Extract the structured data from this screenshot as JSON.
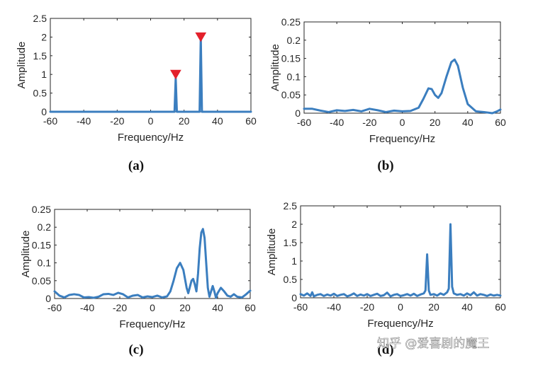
{
  "chart_data": [
    {
      "id": "a",
      "type": "line",
      "caption": "(a)",
      "xlabel": "Frequency/Hz",
      "ylabel": "Amplitude",
      "xlim": [
        -60,
        60
      ],
      "ylim": [
        0,
        2.5
      ],
      "xticks": [
        "-60",
        "-40",
        "-20",
        "0",
        "20",
        "40",
        "60"
      ],
      "yticks": [
        "0",
        "0.5",
        "1",
        "1.5",
        "2",
        "2.5"
      ],
      "series": [
        {
          "color": "#3b7ebf",
          "points": [
            [
              -60,
              0
            ],
            [
              14.3,
              0
            ],
            [
              15,
              0.9
            ],
            [
              15.7,
              0
            ],
            [
              29.3,
              0
            ],
            [
              30,
              2
            ],
            [
              30.7,
              0
            ],
            [
              60,
              0
            ]
          ]
        }
      ],
      "markers": [
        {
          "x": 15,
          "y": 1,
          "shape": "triangle-down",
          "color": "#e3202b"
        },
        {
          "x": 30,
          "y": 2,
          "shape": "triangle-down",
          "color": "#e3202b"
        }
      ]
    },
    {
      "id": "b",
      "type": "line",
      "caption": "(b)",
      "xlabel": "Frequency/Hz",
      "ylabel": "Amplitude",
      "xlim": [
        -60,
        60
      ],
      "ylim": [
        0,
        0.25
      ],
      "xticks": [
        "-60",
        "-40",
        "-20",
        "0",
        "20",
        "40",
        "60"
      ],
      "yticks": [
        "0",
        "0.05",
        "0.1",
        "0.15",
        "0.2",
        "0.25"
      ],
      "series": [
        {
          "color": "#3b7ebf",
          "points": [
            [
              -60,
              0.012
            ],
            [
              -55,
              0.012
            ],
            [
              -50,
              0.007
            ],
            [
              -45,
              0.003
            ],
            [
              -40,
              0.008
            ],
            [
              -35,
              0.006
            ],
            [
              -30,
              0.009
            ],
            [
              -25,
              0.005
            ],
            [
              -20,
              0.012
            ],
            [
              -15,
              0.008
            ],
            [
              -10,
              0.003
            ],
            [
              -5,
              0.007
            ],
            [
              0,
              0.005
            ],
            [
              5,
              0.006
            ],
            [
              10,
              0.015
            ],
            [
              13,
              0.04
            ],
            [
              16,
              0.068
            ],
            [
              18,
              0.066
            ],
            [
              20,
              0.05
            ],
            [
              22,
              0.042
            ],
            [
              24,
              0.055
            ],
            [
              27,
              0.1
            ],
            [
              30,
              0.14
            ],
            [
              32,
              0.147
            ],
            [
              34,
              0.13
            ],
            [
              37,
              0.07
            ],
            [
              40,
              0.025
            ],
            [
              45,
              0.005
            ],
            [
              50,
              0.003
            ],
            [
              55,
              0.0
            ],
            [
              58,
              0.005
            ],
            [
              60,
              0.01
            ]
          ]
        }
      ]
    },
    {
      "id": "c",
      "type": "line",
      "caption": "(c)",
      "xlabel": "Frequency/Hz",
      "ylabel": "Amplitude",
      "xlim": [
        -60,
        60
      ],
      "ylim": [
        0,
        0.25
      ],
      "xticks": [
        "-60",
        "-40",
        "-20",
        "0",
        "20",
        "40",
        "60"
      ],
      "yticks": [
        "0",
        "0.05",
        "0.1",
        "0.15",
        "0.2",
        "0.25"
      ],
      "series": [
        {
          "color": "#3b7ebf",
          "points": [
            [
              -60,
              0.02
            ],
            [
              -57,
              0.008
            ],
            [
              -54,
              0.003
            ],
            [
              -51,
              0.01
            ],
            [
              -48,
              0.012
            ],
            [
              -45,
              0.01
            ],
            [
              -42,
              0.003
            ],
            [
              -39,
              0.004
            ],
            [
              -36,
              0.002
            ],
            [
              -33,
              0.005
            ],
            [
              -30,
              0.012
            ],
            [
              -27,
              0.013
            ],
            [
              -24,
              0.01
            ],
            [
              -21,
              0.016
            ],
            [
              -18,
              0.012
            ],
            [
              -15,
              0.003
            ],
            [
              -12,
              0.008
            ],
            [
              -9,
              0.01
            ],
            [
              -6,
              0.003
            ],
            [
              -3,
              0.006
            ],
            [
              0,
              0.004
            ],
            [
              3,
              0.008
            ],
            [
              6,
              0.003
            ],
            [
              9,
              0.006
            ],
            [
              11,
              0.02
            ],
            [
              13,
              0.05
            ],
            [
              15,
              0.085
            ],
            [
              17,
              0.1
            ],
            [
              19,
              0.08
            ],
            [
              21,
              0.03
            ],
            [
              22,
              0.015
            ],
            [
              24,
              0.05
            ],
            [
              25,
              0.055
            ],
            [
              26,
              0.04
            ],
            [
              27,
              0.02
            ],
            [
              28,
              0.07
            ],
            [
              29,
              0.14
            ],
            [
              30,
              0.185
            ],
            [
              31,
              0.195
            ],
            [
              32,
              0.17
            ],
            [
              33,
              0.1
            ],
            [
              34,
              0.03
            ],
            [
              35,
              0.005
            ],
            [
              36,
              0.02
            ],
            [
              37,
              0.035
            ],
            [
              38,
              0.02
            ],
            [
              39,
              0.002
            ],
            [
              40,
              0.015
            ],
            [
              42,
              0.03
            ],
            [
              44,
              0.02
            ],
            [
              46,
              0.008
            ],
            [
              48,
              0.005
            ],
            [
              50,
              0.012
            ],
            [
              52,
              0.005
            ],
            [
              55,
              0.003
            ],
            [
              57,
              0.01
            ],
            [
              60,
              0.022
            ]
          ]
        }
      ]
    },
    {
      "id": "d",
      "type": "line",
      "caption": "(d)",
      "xlabel": "Frequency/Hz",
      "ylabel": "Amplitude",
      "xlim": [
        -60,
        60
      ],
      "ylim": [
        0,
        2.5
      ],
      "xticks": [
        "-60",
        "-40",
        "-20",
        "0",
        "20",
        "40",
        "60"
      ],
      "yticks": [
        "0",
        "0.5",
        "1",
        "1.5",
        "2",
        "2.5"
      ],
      "series": [
        {
          "color": "#3b7ebf",
          "points": [
            [
              -60,
              0.1
            ],
            [
              -58,
              0.06
            ],
            [
              -56,
              0.12
            ],
            [
              -54,
              0.05
            ],
            [
              -53,
              0.15
            ],
            [
              -52,
              0.04
            ],
            [
              -50,
              0.08
            ],
            [
              -48,
              0.1
            ],
            [
              -46,
              0.05
            ],
            [
              -44,
              0.09
            ],
            [
              -42,
              0.06
            ],
            [
              -40,
              0.11
            ],
            [
              -38,
              0.05
            ],
            [
              -36,
              0.08
            ],
            [
              -34,
              0.1
            ],
            [
              -32,
              0.04
            ],
            [
              -30,
              0.07
            ],
            [
              -28,
              0.12
            ],
            [
              -26,
              0.05
            ],
            [
              -24,
              0.09
            ],
            [
              -22,
              0.06
            ],
            [
              -20,
              0.1
            ],
            [
              -18,
              0.05
            ],
            [
              -16,
              0.08
            ],
            [
              -14,
              0.11
            ],
            [
              -12,
              0.05
            ],
            [
              -10,
              0.07
            ],
            [
              -8,
              0.14
            ],
            [
              -6,
              0.04
            ],
            [
              -4,
              0.08
            ],
            [
              -2,
              0.1
            ],
            [
              0,
              0.05
            ],
            [
              2,
              0.07
            ],
            [
              4,
              0.1
            ],
            [
              6,
              0.06
            ],
            [
              8,
              0.11
            ],
            [
              10,
              0.05
            ],
            [
              12,
              0.09
            ],
            [
              14,
              0.12
            ],
            [
              15,
              0.2
            ],
            [
              16,
              1.18
            ],
            [
              17,
              0.2
            ],
            [
              18,
              0.08
            ],
            [
              20,
              0.1
            ],
            [
              22,
              0.06
            ],
            [
              24,
              0.12
            ],
            [
              26,
              0.08
            ],
            [
              28,
              0.15
            ],
            [
              29,
              0.25
            ],
            [
              30,
              2.0
            ],
            [
              31,
              0.3
            ],
            [
              32,
              0.12
            ],
            [
              34,
              0.08
            ],
            [
              36,
              0.1
            ],
            [
              38,
              0.06
            ],
            [
              40,
              0.12
            ],
            [
              42,
              0.07
            ],
            [
              44,
              0.15
            ],
            [
              46,
              0.06
            ],
            [
              48,
              0.1
            ],
            [
              50,
              0.08
            ],
            [
              52,
              0.05
            ],
            [
              54,
              0.09
            ],
            [
              56,
              0.06
            ],
            [
              58,
              0.08
            ],
            [
              60,
              0.06
            ]
          ]
        }
      ]
    }
  ],
  "watermark": "知乎 @爱喜剧的魔王"
}
